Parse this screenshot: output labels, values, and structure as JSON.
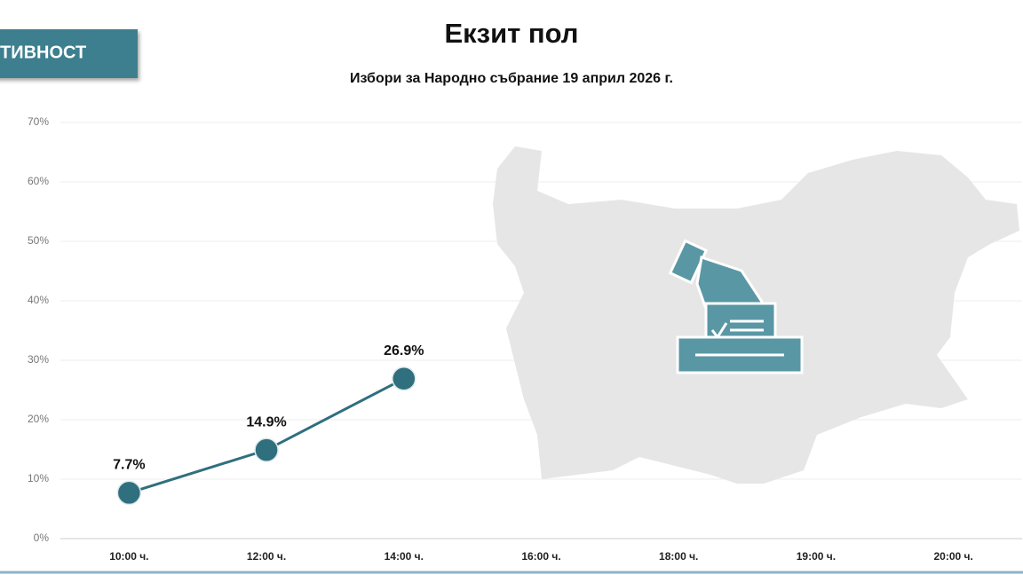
{
  "badge": "ТИВНОСТ",
  "chart_data": {
    "type": "line",
    "title": "Екзит пол",
    "subtitle": "Избори за Народно събрание 19 април 2026 г.",
    "categories": [
      "10:00 ч.",
      "12:00 ч.",
      "14:00 ч.",
      "16:00 ч.",
      "18:00 ч.",
      "19:00 ч.",
      "20:00 ч."
    ],
    "values": [
      7.7,
      14.9,
      26.9,
      null,
      null,
      null,
      null
    ],
    "value_labels": [
      "7.7%",
      "14.9%",
      "26.9%",
      null,
      null,
      null,
      null
    ],
    "color": "#2f6f7e",
    "ylim": [
      0,
      70
    ],
    "yticks": [
      {
        "value": 0,
        "label": "0%"
      },
      {
        "value": 10,
        "label": "10%"
      },
      {
        "value": 20,
        "label": "20%"
      },
      {
        "value": 30,
        "label": "30%"
      },
      {
        "value": 40,
        "label": "40%"
      },
      {
        "value": 50,
        "label": "50%"
      },
      {
        "value": 60,
        "label": "60%"
      },
      {
        "value": 70,
        "label": "70%"
      }
    ],
    "grid": true
  }
}
